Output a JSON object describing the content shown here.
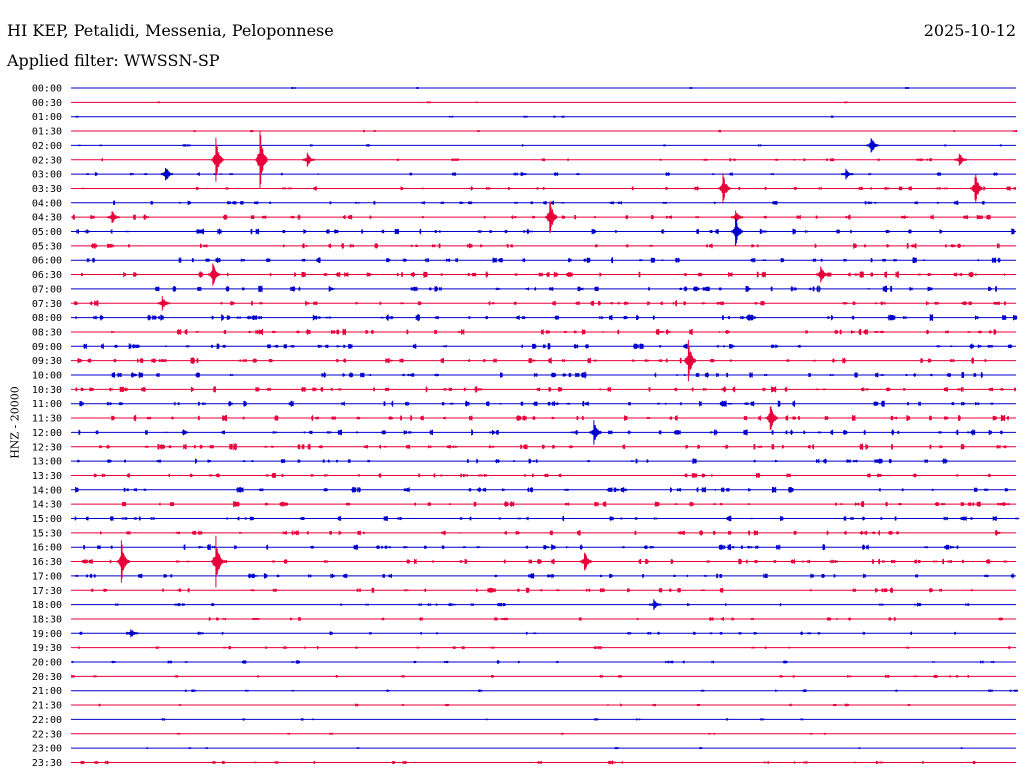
{
  "header": {
    "station": "HI KEP, Petalidi, Messenia, Peloponnese",
    "filter": "Applied filter: WWSSN-SP",
    "date": "2025-10-12"
  },
  "chart_data": {
    "type": "line",
    "title": "HI KEP, Petalidi, Messenia, Peloponnese",
    "subtitle": "Applied filter: WWSSN-SP",
    "date": "2025-10-12",
    "ylabel": "HNZ - 20000",
    "xlabel": "",
    "row_labels": [
      "00:00",
      "00:30",
      "01:00",
      "01:30",
      "02:00",
      "02:30",
      "03:00",
      "03:30",
      "04:00",
      "04:30",
      "05:00",
      "05:30",
      "06:00",
      "06:30",
      "07:00",
      "07:30",
      "08:00",
      "08:30",
      "09:00",
      "09:30",
      "10:00",
      "10:30",
      "11:00",
      "11:30",
      "12:00",
      "12:30",
      "13:00",
      "13:30",
      "14:00",
      "14:30",
      "15:00",
      "15:30",
      "16:00",
      "16:30",
      "17:00",
      "17:30",
      "18:00",
      "18:30",
      "19:00",
      "19:30",
      "20:00",
      "20:30",
      "21:00",
      "21:30",
      "22:00",
      "22:30",
      "23:00",
      "23:30"
    ],
    "minutes_per_row": 30,
    "series_colors": [
      "#0000cc",
      "#e8003a"
    ],
    "activity_level": [
      0.05,
      0.06,
      0.08,
      0.12,
      0.15,
      0.3,
      0.35,
      0.45,
      0.5,
      0.6,
      0.65,
      0.65,
      0.7,
      0.75,
      0.75,
      0.7,
      0.8,
      0.75,
      0.7,
      0.75,
      0.75,
      0.75,
      0.8,
      0.75,
      0.75,
      0.8,
      0.6,
      0.6,
      0.7,
      0.65,
      0.6,
      0.6,
      0.7,
      0.7,
      0.6,
      0.6,
      0.35,
      0.35,
      0.35,
      0.3,
      0.3,
      0.25,
      0.2,
      0.18,
      0.15,
      0.12,
      0.12,
      0.35
    ],
    "events": [
      {
        "row": 4,
        "minute": 25.4,
        "amp": 10
      },
      {
        "row": 5,
        "minute": 4.6,
        "amp": 24
      },
      {
        "row": 5,
        "minute": 6.0,
        "amp": 32
      },
      {
        "row": 5,
        "minute": 7.5,
        "amp": 8
      },
      {
        "row": 5,
        "minute": 28.2,
        "amp": 8
      },
      {
        "row": 6,
        "minute": 3.0,
        "amp": 10
      },
      {
        "row": 6,
        "minute": 24.6,
        "amp": 6
      },
      {
        "row": 7,
        "minute": 20.7,
        "amp": 16
      },
      {
        "row": 7,
        "minute": 28.7,
        "amp": 18
      },
      {
        "row": 9,
        "minute": 1.3,
        "amp": 8
      },
      {
        "row": 9,
        "minute": 15.2,
        "amp": 22
      },
      {
        "row": 9,
        "minute": 21.1,
        "amp": 8
      },
      {
        "row": 10,
        "minute": 21.1,
        "amp": 16
      },
      {
        "row": 13,
        "minute": 4.5,
        "amp": 14
      },
      {
        "row": 13,
        "minute": 23.8,
        "amp": 12
      },
      {
        "row": 15,
        "minute": 2.9,
        "amp": 8
      },
      {
        "row": 19,
        "minute": 19.6,
        "amp": 22
      },
      {
        "row": 23,
        "minute": 22.2,
        "amp": 18
      },
      {
        "row": 24,
        "minute": 16.6,
        "amp": 14
      },
      {
        "row": 33,
        "minute": 1.6,
        "amp": 22
      },
      {
        "row": 33,
        "minute": 4.6,
        "amp": 28
      },
      {
        "row": 33,
        "minute": 16.3,
        "amp": 12
      },
      {
        "row": 36,
        "minute": 18.5,
        "amp": 6
      },
      {
        "row": 38,
        "minute": 1.9,
        "amp": 6
      }
    ]
  }
}
